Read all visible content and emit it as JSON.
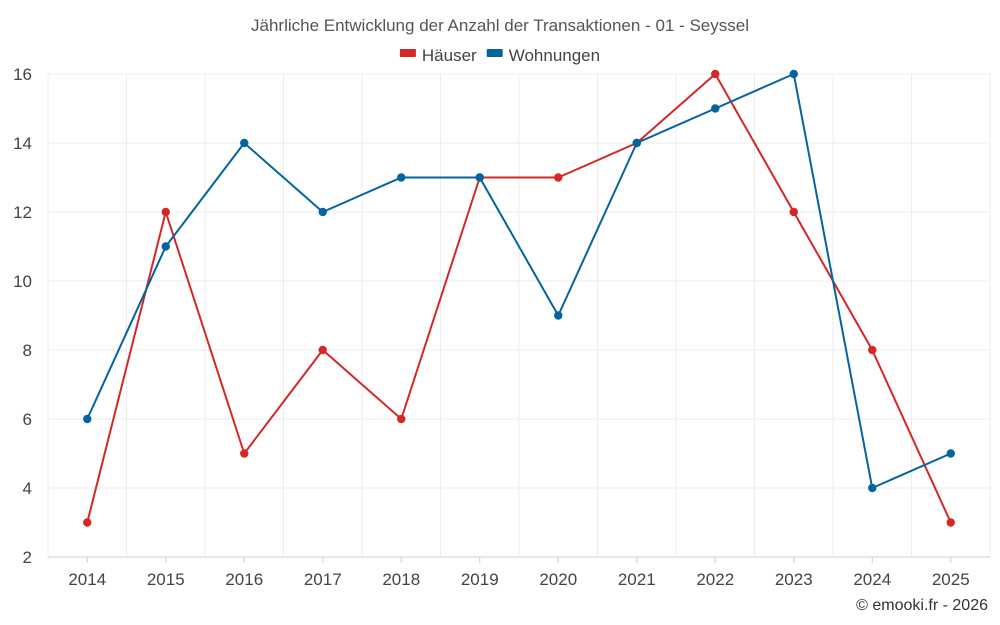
{
  "chart_data": {
    "type": "line",
    "title": "Jährliche Entwicklung der Anzahl der Transaktionen - 01 - Seyssel",
    "xlabel": "",
    "ylabel": "",
    "categories": [
      "2014",
      "2015",
      "2016",
      "2017",
      "2018",
      "2019",
      "2020",
      "2021",
      "2022",
      "2023",
      "2024",
      "2025"
    ],
    "ylim": [
      2,
      16
    ],
    "yticks": [
      2,
      4,
      6,
      8,
      10,
      12,
      14,
      16
    ],
    "grid": true,
    "legend": "top-center",
    "series": [
      {
        "name": "Häuser",
        "color": "#d62728",
        "values": [
          3,
          12,
          5,
          8,
          6,
          13,
          13,
          14,
          16,
          12,
          8,
          3
        ]
      },
      {
        "name": "Wohnungen",
        "color": "#03649e",
        "values": [
          6,
          11,
          14,
          12,
          13,
          13,
          9,
          14,
          15,
          16,
          4,
          5
        ]
      }
    ]
  },
  "credit": "© emooki.fr - 2026"
}
